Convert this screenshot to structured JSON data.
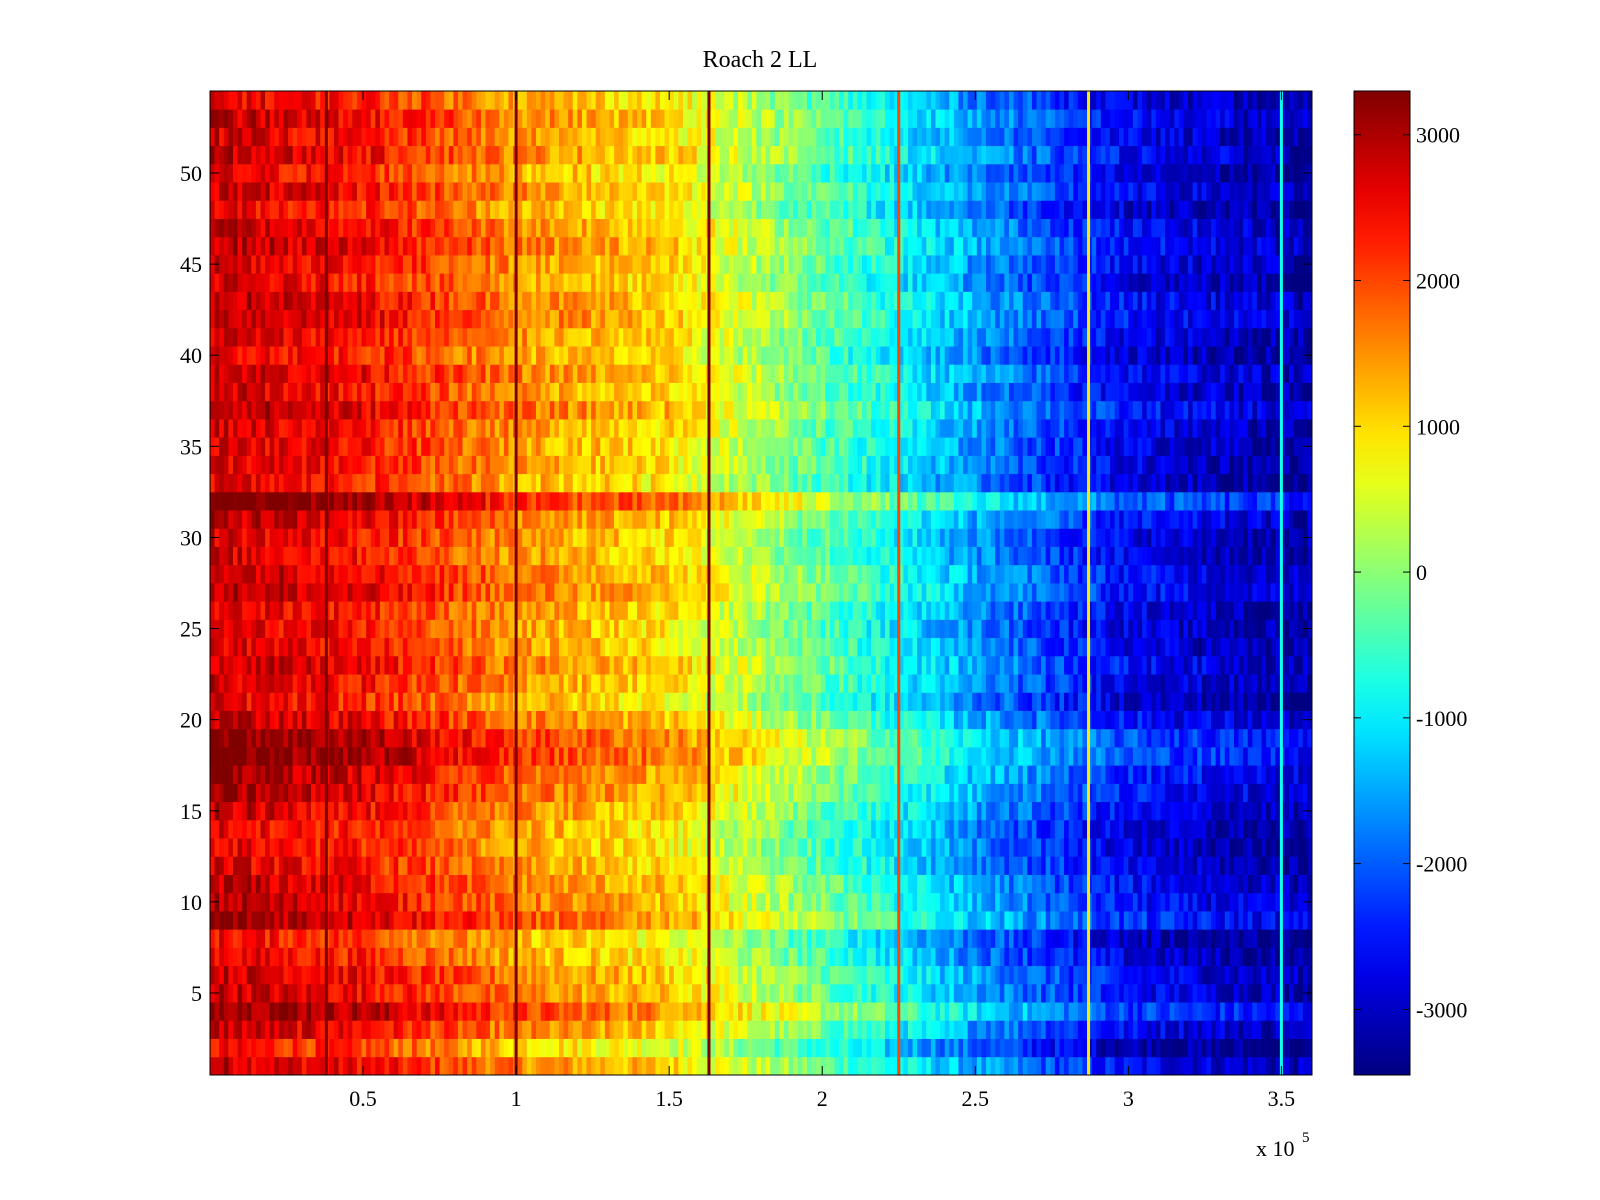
{
  "chart_data": {
    "type": "heatmap",
    "title": "Roach 2 LL",
    "xlabel": "",
    "ylabel": "",
    "x_exponent_label": "x 10",
    "x_exponent": "5",
    "xlim": [
      0,
      3.6
    ],
    "ylim": [
      0.5,
      54.5
    ],
    "x_ticks": [
      0.5,
      1,
      1.5,
      2,
      2.5,
      3,
      3.5
    ],
    "x_tick_labels": [
      "0.5",
      "1",
      "1.5",
      "2",
      "2.5",
      "3",
      "3.5"
    ],
    "y_ticks": [
      5,
      10,
      15,
      20,
      25,
      30,
      35,
      40,
      45,
      50
    ],
    "y_tick_labels": [
      "5",
      "10",
      "15",
      "20",
      "25",
      "30",
      "35",
      "40",
      "45",
      "50"
    ],
    "rows": 54,
    "colorbar": {
      "colormap": "jet",
      "range": [
        -3450,
        3300
      ],
      "ticks": [
        3000,
        2000,
        1000,
        0,
        -1000,
        -2000,
        -3000
      ],
      "tick_labels": [
        "3000",
        "2000",
        "1000",
        "0",
        "-1000",
        "-2000",
        "-3000"
      ]
    },
    "value_profile": {
      "description_of_trend": "values decrease roughly linearly from about 2800 at left to about -3200 at right",
      "x": [
        0,
        0.5,
        1.0,
        1.5,
        2.0,
        2.5,
        3.0,
        3.5,
        3.6
      ],
      "value": [
        2800,
        2400,
        1500,
        1000,
        -300,
        -1600,
        -2700,
        -3100,
        -3200
      ]
    },
    "vertical_lines": [
      {
        "x": 0.38,
        "value": 3300
      },
      {
        "x": 1.0,
        "value": 3300
      },
      {
        "x": 1.63,
        "value": 3300
      },
      {
        "x": 2.25,
        "value": 2000
      },
      {
        "x": 2.87,
        "value": 900
      },
      {
        "x": 3.5,
        "value": -800
      }
    ],
    "row_offsets": [
      {
        "row": 32,
        "offset": 900
      },
      {
        "row": 18,
        "offset": 500
      },
      {
        "row": 17,
        "offset": 500
      },
      {
        "row": 19,
        "offset": 400
      },
      {
        "row": 16,
        "offset": 400
      },
      {
        "row": 9,
        "offset": 300
      },
      {
        "row": 4,
        "offset": 300
      },
      {
        "row": 2,
        "offset": -300
      },
      {
        "row": 13,
        "offset": -300
      },
      {
        "row": 8,
        "offset": -500
      }
    ]
  }
}
